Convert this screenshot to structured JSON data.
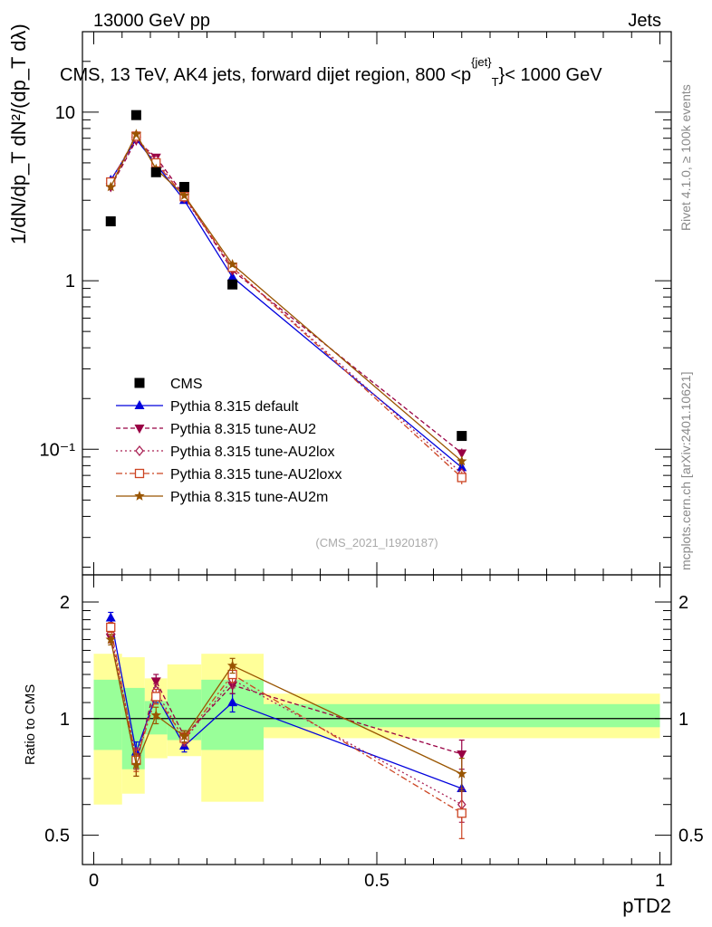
{
  "header": {
    "left": "13000 GeV pp",
    "right": "Jets"
  },
  "side_labels": {
    "rivet": "Rivet 4.1.0, ≥ 100k events",
    "mcplots": "mcplots.cern.ch [arXiv:2401.10621]"
  },
  "chart_data": [
    {
      "type": "line",
      "panel": "main",
      "title": "CMS, 13 TeV, AK4 jets, forward dijet region, 800 <p_T^{jet}< 1000 GeV",
      "ylabel": "1/dN/dp_T dN²/(dp_T dλ)",
      "yscale": "log",
      "ylim": [
        0.018,
        30
      ],
      "xlim": [
        -0.02,
        1.02
      ],
      "y_tick_labels": [
        "10⁻¹",
        "1",
        "10"
      ],
      "watermark": "(CMS_2021_I1920187)",
      "x": [
        0.03,
        0.075,
        0.11,
        0.16,
        0.245,
        0.65
      ],
      "data": {
        "name": "CMS",
        "values": [
          2.25,
          9.6,
          4.4,
          3.6,
          0.95,
          0.12
        ],
        "xerr_low": [
          0.0,
          0.05,
          0.09,
          0.13,
          0.19,
          0.3
        ],
        "xerr_high": [
          0.05,
          0.09,
          0.13,
          0.19,
          0.3,
          1.0
        ]
      },
      "series": [
        {
          "name": "Pythia 8.315 default",
          "color": "#0000dd",
          "dash": "",
          "marker": "triangle-up",
          "values": [
            3.95,
            6.9,
            4.9,
            3.0,
            1.05,
            0.078
          ],
          "errors": [
            0.15,
            0.2,
            0.15,
            0.08,
            0.04,
            0.005
          ]
        },
        {
          "name": "Pythia 8.315 tune-AU2",
          "color": "#990044",
          "dash": "5,3",
          "marker": "triangle-down",
          "values": [
            3.6,
            6.8,
            5.4,
            3.2,
            1.15,
            0.095
          ],
          "errors": [
            0.12,
            0.2,
            0.15,
            0.08,
            0.04,
            0.006
          ]
        },
        {
          "name": "Pythia 8.315 tune-AU2lox",
          "color": "#aa2255",
          "dash": "2,3",
          "marker": "diamond-open",
          "values": [
            3.7,
            7.0,
            5.2,
            3.1,
            1.2,
            0.072
          ],
          "errors": [
            0.12,
            0.2,
            0.15,
            0.08,
            0.04,
            0.005
          ]
        },
        {
          "name": "Pythia 8.315 tune-AU2loxx",
          "color": "#cc4422",
          "dash": "7,3,2,3",
          "marker": "square-open",
          "values": [
            3.85,
            7.2,
            5.0,
            3.15,
            1.2,
            0.068
          ],
          "errors": [
            0.12,
            0.2,
            0.15,
            0.08,
            0.04,
            0.006
          ]
        },
        {
          "name": "Pythia 8.315 tune-AU2m",
          "color": "#995500",
          "dash": "",
          "marker": "star",
          "values": [
            3.6,
            7.4,
            4.6,
            3.2,
            1.25,
            0.085
          ],
          "errors": [
            0.12,
            0.2,
            0.15,
            0.08,
            0.04,
            0.006
          ]
        }
      ]
    },
    {
      "type": "line",
      "panel": "ratio",
      "ylabel": "Ratio to CMS",
      "xlabel": "pTD2",
      "yscale": "log",
      "ylim": [
        0.42,
        2.35
      ],
      "xlim": [
        -0.02,
        1.02
      ],
      "y_tick_labels": [
        "0.5",
        "1",
        "2"
      ],
      "x_tick_labels": [
        "0",
        "0.5",
        "1"
      ],
      "bands": {
        "x_edges": [
          0.0,
          0.05,
          0.09,
          0.13,
          0.19,
          0.3,
          1.0
        ],
        "inner_low": [
          0.83,
          0.74,
          0.91,
          0.88,
          0.83,
          0.95
        ],
        "inner_high": [
          1.26,
          1.2,
          1.11,
          1.19,
          1.26,
          1.09
        ],
        "outer_low": [
          0.6,
          0.64,
          0.79,
          0.8,
          0.61,
          0.89
        ],
        "outer_high": [
          1.47,
          1.44,
          1.27,
          1.38,
          1.47,
          1.16
        ]
      },
      "x": [
        0.03,
        0.075,
        0.11,
        0.16,
        0.245,
        0.65
      ],
      "series": [
        {
          "name": "Pythia 8.315 default",
          "values": [
            1.82,
            0.82,
            1.15,
            0.85,
            1.1,
            0.66
          ],
          "errors": [
            0.06,
            0.05,
            0.05,
            0.03,
            0.06,
            0.06
          ]
        },
        {
          "name": "Pythia 8.315 tune-AU2",
          "values": [
            1.62,
            0.76,
            1.25,
            0.9,
            1.22,
            0.81
          ],
          "errors": [
            0.05,
            0.05,
            0.05,
            0.03,
            0.06,
            0.07
          ]
        },
        {
          "name": "Pythia 8.315 tune-AU2lox",
          "values": [
            1.66,
            0.79,
            1.18,
            0.88,
            1.26,
            0.6
          ],
          "errors": [
            0.05,
            0.05,
            0.05,
            0.03,
            0.06,
            0.06
          ]
        },
        {
          "name": "Pythia 8.315 tune-AU2loxx",
          "values": [
            1.72,
            0.78,
            1.14,
            0.89,
            1.3,
            0.57
          ],
          "errors": [
            0.05,
            0.05,
            0.05,
            0.03,
            0.06,
            0.08
          ]
        },
        {
          "name": "Pythia 8.315 tune-AU2m",
          "values": [
            1.6,
            0.76,
            1.02,
            0.9,
            1.37,
            0.72
          ],
          "errors": [
            0.05,
            0.05,
            0.05,
            0.03,
            0.06,
            0.07
          ]
        }
      ]
    }
  ]
}
